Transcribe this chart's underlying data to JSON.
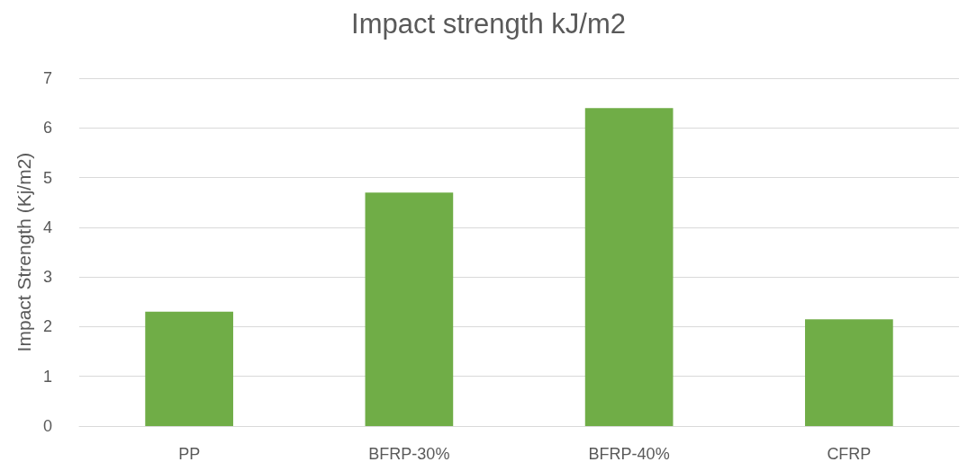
{
  "chart_data": {
    "type": "bar",
    "title": "Impact strength kJ/m2",
    "ylabel": "Impact Strength (Kj/m2)",
    "categories": [
      "PP",
      "BFRP-30%",
      "BFRP-40%",
      "CFRP"
    ],
    "values": [
      2.3,
      4.7,
      6.4,
      2.15
    ],
    "color": "#70ad47",
    "ylim": [
      0,
      7
    ],
    "yticks": [
      0,
      1,
      2,
      3,
      4,
      5,
      6,
      7
    ],
    "grid": "y"
  }
}
